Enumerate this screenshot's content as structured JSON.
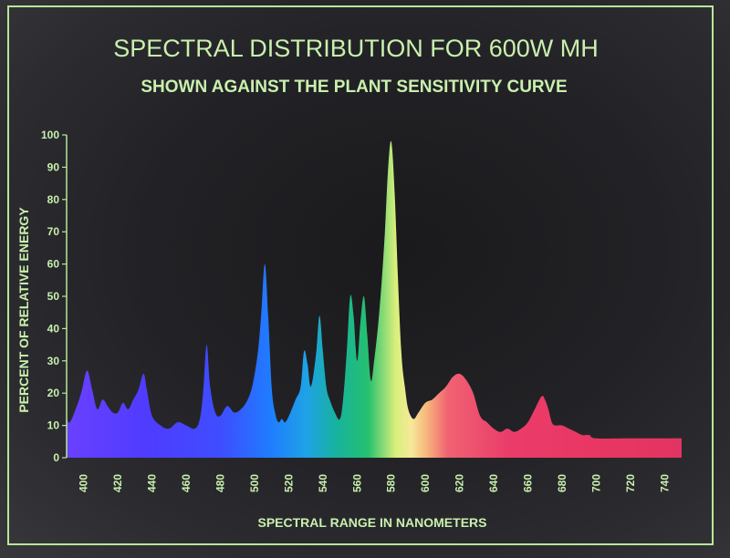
{
  "chart_data": {
    "type": "area",
    "title": "SPECTRAL DISTRIBUTION FOR 600W MH",
    "subtitle": "SHOWN AGAINST THE PLANT SENSITIVITY CURVE",
    "xlabel": "SPECTRAL RANGE IN NANOMETERS",
    "ylabel": "PERCENT OF RELATIVE ENERGY",
    "xlim": [
      390,
      750
    ],
    "ylim": [
      0,
      100
    ],
    "x_ticks": [
      400,
      420,
      440,
      460,
      480,
      500,
      520,
      540,
      560,
      580,
      600,
      620,
      640,
      660,
      680,
      700,
      720,
      740
    ],
    "y_ticks": [
      0,
      10,
      20,
      30,
      40,
      50,
      60,
      70,
      80,
      90,
      100
    ],
    "grid": false,
    "series": [
      {
        "x": [
          390,
          392,
          396,
          399,
          402,
          405,
          408,
          411,
          414,
          417,
          420,
          423,
          426,
          429,
          432,
          435,
          437,
          440,
          445,
          450,
          455,
          460,
          465,
          468,
          470,
          472,
          474,
          477,
          480,
          484,
          488,
          492,
          496,
          499,
          502,
          504,
          506,
          508,
          510,
          512,
          514,
          516,
          518,
          521,
          524,
          527,
          529,
          531,
          533,
          536,
          538,
          540,
          542,
          544,
          547,
          550,
          552,
          554,
          556,
          558,
          560,
          562,
          564,
          566,
          568,
          570,
          573,
          576,
          578,
          580,
          582,
          584,
          586,
          588,
          590,
          593,
          596,
          600,
          604,
          608,
          612,
          616,
          620,
          624,
          628,
          632,
          636,
          640,
          644,
          648,
          652,
          656,
          660,
          664,
          668,
          670,
          672,
          674,
          676,
          680,
          684,
          688,
          692,
          696,
          700,
          720,
          750
        ],
        "y": [
          12,
          11,
          16,
          21,
          27,
          21,
          15,
          18,
          16,
          14,
          14,
          17,
          15,
          18,
          21,
          26,
          21,
          13,
          10,
          9,
          11,
          10,
          9,
          12,
          21,
          35,
          22,
          14,
          13,
          16,
          14,
          15,
          18,
          23,
          33,
          45,
          60,
          44,
          22,
          14,
          11,
          12,
          11,
          14,
          18,
          22,
          33,
          29,
          22,
          32,
          44,
          33,
          22,
          18,
          14,
          12,
          19,
          33,
          50,
          44,
          30,
          42,
          50,
          38,
          24,
          30,
          45,
          67,
          88,
          98,
          82,
          55,
          32,
          22,
          15,
          12,
          14,
          17,
          18,
          20,
          22,
          25,
          26,
          24,
          20,
          13,
          11,
          9,
          8,
          9,
          8,
          9,
          11,
          15,
          19,
          18,
          15,
          11,
          10,
          10,
          9,
          8,
          7,
          7,
          6,
          6,
          6
        ]
      }
    ]
  }
}
